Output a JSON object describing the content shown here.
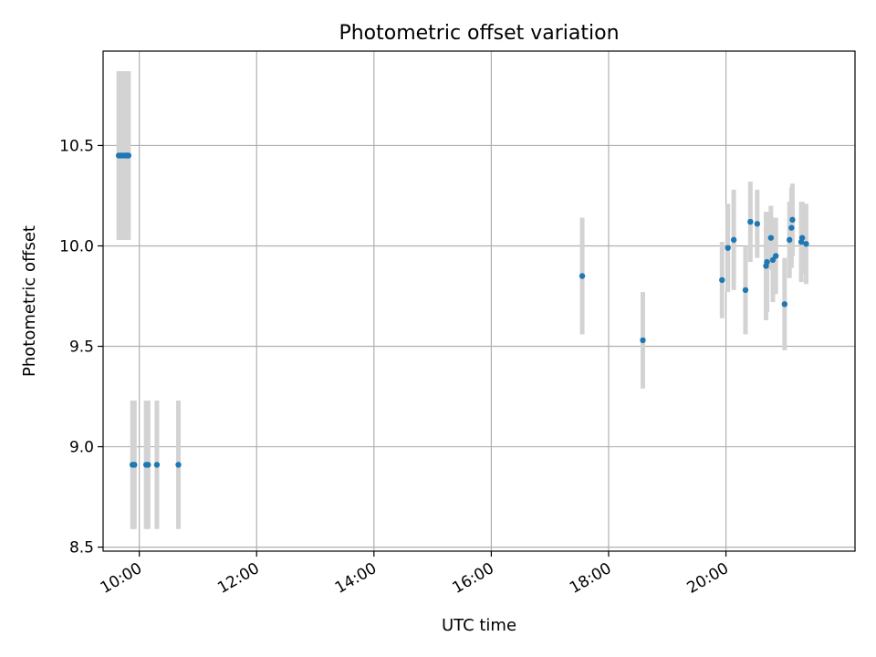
{
  "chart_data": {
    "type": "scatter",
    "title": "Photometric offset variation",
    "xlabel": "UTC time",
    "ylabel": "Photometric offset",
    "xlim": [
      "09:23",
      "22:12"
    ],
    "ylim": [
      8.48,
      10.97
    ],
    "grid": true,
    "xticks": [
      "10:00",
      "12:00",
      "14:00",
      "16:00",
      "18:00",
      "20:00"
    ],
    "yticks": [
      "8.5",
      "9.0",
      "9.5",
      "10.0",
      "10.5"
    ],
    "marker_color": "#1f77b4",
    "errorbar_color": "#d3d3d3",
    "series": [
      {
        "points": [
          {
            "x": "09:39",
            "y": 10.45,
            "err": 0.42
          },
          {
            "x": "09:41",
            "y": 10.45,
            "err": 0.42
          },
          {
            "x": "09:43",
            "y": 10.45,
            "err": 0.42
          },
          {
            "x": "09:45",
            "y": 10.45,
            "err": 0.42
          },
          {
            "x": "09:47",
            "y": 10.45,
            "err": 0.42
          },
          {
            "x": "09:48",
            "y": 10.45,
            "err": 0.42
          },
          {
            "x": "09:49",
            "y": 10.45,
            "err": 0.42
          },
          {
            "x": "09:53",
            "y": 8.91,
            "err": 0.32
          },
          {
            "x": "09:55",
            "y": 8.91,
            "err": 0.32
          },
          {
            "x": "10:07",
            "y": 8.91,
            "err": 0.32
          },
          {
            "x": "10:09",
            "y": 8.91,
            "err": 0.32
          },
          {
            "x": "10:18",
            "y": 8.91,
            "err": 0.32
          },
          {
            "x": "10:40",
            "y": 8.91,
            "err": 0.32
          },
          {
            "x": "17:33",
            "y": 9.85,
            "err": 0.29
          },
          {
            "x": "18:35",
            "y": 9.53,
            "err": 0.24
          },
          {
            "x": "19:56",
            "y": 9.83,
            "err": 0.19
          },
          {
            "x": "20:02",
            "y": 9.99,
            "err": 0.22
          },
          {
            "x": "20:08",
            "y": 10.03,
            "err": 0.25
          },
          {
            "x": "20:20",
            "y": 9.78,
            "err": 0.22
          },
          {
            "x": "20:25",
            "y": 10.12,
            "err": 0.2
          },
          {
            "x": "20:32",
            "y": 10.11,
            "err": 0.17
          },
          {
            "x": "20:41",
            "y": 9.9,
            "err": 0.27
          },
          {
            "x": "20:42",
            "y": 9.92,
            "err": 0.25
          },
          {
            "x": "20:46",
            "y": 10.04,
            "err": 0.16
          },
          {
            "x": "20:48",
            "y": 9.93,
            "err": 0.21
          },
          {
            "x": "20:51",
            "y": 9.95,
            "err": 0.19
          },
          {
            "x": "21:00",
            "y": 9.71,
            "err": 0.23
          },
          {
            "x": "21:05",
            "y": 10.03,
            "err": 0.19
          },
          {
            "x": "21:07",
            "y": 10.09,
            "err": 0.2
          },
          {
            "x": "21:08",
            "y": 10.13,
            "err": 0.18
          },
          {
            "x": "21:17",
            "y": 10.02,
            "err": 0.2
          },
          {
            "x": "21:18",
            "y": 10.04,
            "err": 0.18
          },
          {
            "x": "21:22",
            "y": 10.01,
            "err": 0.2
          }
        ]
      }
    ]
  }
}
